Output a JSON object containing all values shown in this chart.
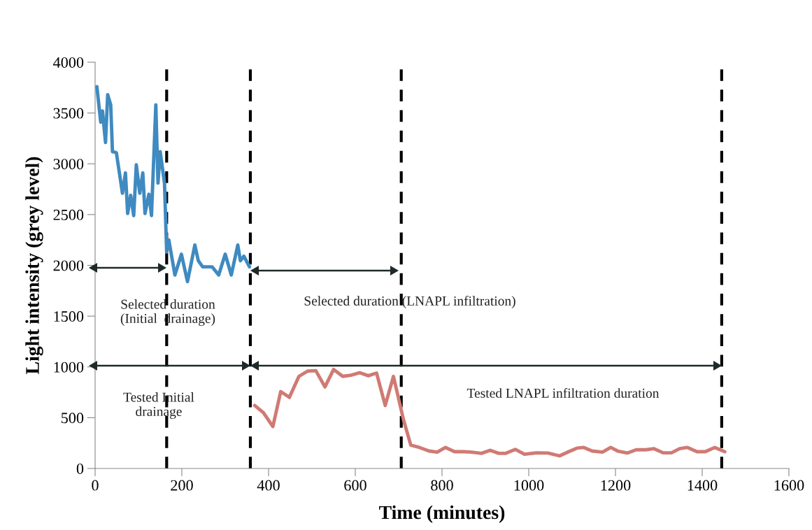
{
  "chart_data": {
    "type": "line",
    "xlabel": "Time (minutes)",
    "ylabel": "Light intensity (grey level)",
    "xlim": [
      0,
      1600
    ],
    "xticks": [
      0,
      200,
      400,
      600,
      800,
      1000,
      1200,
      1400,
      1600
    ],
    "ylim": [
      0,
      4000
    ],
    "yticks": [
      0,
      500,
      1000,
      1500,
      2000,
      2500,
      3000,
      3500,
      4000
    ],
    "grid": false,
    "legend": false,
    "marker": "none",
    "line_style": "solid",
    "series": [
      {
        "color": "#3f8ac0",
        "x": [
          4,
          13,
          17,
          24,
          29,
          36,
          40,
          49,
          63,
          70,
          75,
          82,
          89,
          95,
          103,
          110,
          115,
          124,
          130,
          140,
          145,
          150,
          160,
          165,
          170,
          184,
          199,
          213,
          230,
          238,
          248,
          270,
          285,
          300,
          314,
          329,
          335,
          343,
          356
        ],
        "values": [
          3760,
          3410,
          3520,
          3210,
          3680,
          3580,
          3120,
          3110,
          2710,
          2910,
          2510,
          2690,
          2490,
          2990,
          2710,
          2910,
          2510,
          2700,
          2490,
          3580,
          2810,
          3120,
          2810,
          2130,
          2250,
          1905,
          2110,
          1840,
          2200,
          2045,
          1985,
          1985,
          1905,
          2110,
          1905,
          2200,
          2045,
          2090,
          1985
        ]
      },
      {
        "color": "#d07a74",
        "x": [
          368,
          388,
          410,
          428,
          448,
          470,
          490,
          509,
          530,
          550,
          571,
          590,
          610,
          630,
          649,
          669,
          688,
          711,
          728,
          748,
          770,
          789,
          808,
          829,
          850,
          868,
          891,
          911,
          931,
          947,
          969,
          990,
          1017,
          1044,
          1071,
          1092,
          1111,
          1127,
          1146,
          1170,
          1189,
          1205,
          1227,
          1248,
          1270,
          1289,
          1310,
          1329,
          1348,
          1366,
          1388,
          1407,
          1429,
          1452
        ],
        "values": [
          620,
          550,
          413,
          757,
          700,
          907,
          959,
          963,
          803,
          975,
          907,
          918,
          943,
          913,
          940,
          620,
          907,
          482,
          230,
          207,
          172,
          161,
          207,
          165,
          165,
          161,
          149,
          179,
          149,
          149,
          188,
          140,
          154,
          152,
          124,
          165,
          200,
          207,
          172,
          161,
          207,
          172,
          152,
          184,
          184,
          195,
          154,
          154,
          195,
          207,
          165,
          165,
          207,
          165
        ]
      }
    ],
    "ref_lines": [
      {
        "axis": "x",
        "value": 165,
        "color": "#000000",
        "line_style": "dashed"
      },
      {
        "axis": "x",
        "value": 358,
        "color": "#000000",
        "line_style": "dashed"
      },
      {
        "axis": "x",
        "value": 706,
        "color": "#000000",
        "line_style": "dashed"
      },
      {
        "axis": "x",
        "value": 1445,
        "color": "#000000",
        "line_style": "dashed"
      }
    ],
    "annotations": [
      "Selected duration\n(Initial  drainage)",
      "Selected duration (LNAPL infiltration)",
      "Tested Initial\ndrainage",
      "Tested LNAPL infiltration duration"
    ]
  }
}
